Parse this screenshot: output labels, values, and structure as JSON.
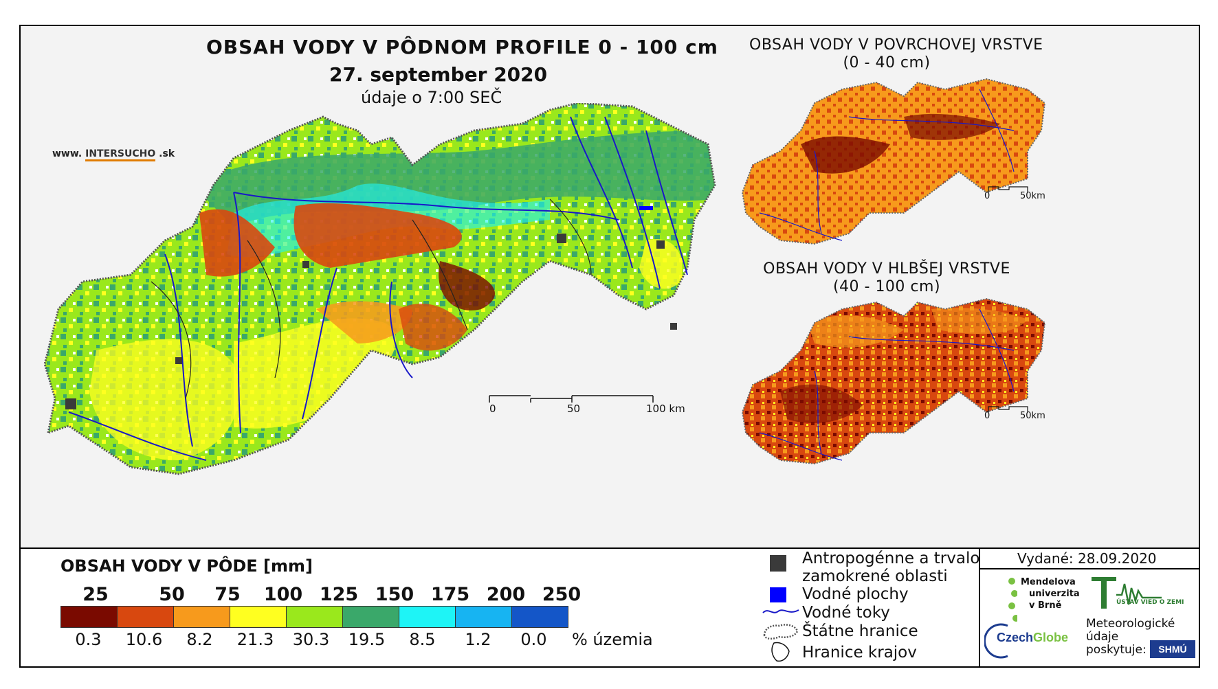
{
  "main": {
    "title": "OBSAH VODY V PÔDNOM PROFILE 0 - 100 cm",
    "date": "27. september 2020",
    "time_note": "údaje o 7:00 SEČ",
    "website_prefix": "www.",
    "website_highlight": "INTERSUCHO",
    "website_suffix": ".sk",
    "scale": {
      "zero": "0",
      "mid": "50",
      "end": "100 km"
    }
  },
  "surface_map": {
    "title": "OBSAH VODY V POVRCHOVEJ VRSTVE",
    "subtitle": "(0 - 40 cm)",
    "scale": {
      "zero": "0",
      "end": "50km"
    }
  },
  "deep_map": {
    "title": "OBSAH VODY V HLBŠEJ VRSTVE",
    "subtitle": "(40 - 100 cm)",
    "scale": {
      "zero": "0",
      "end": "50km"
    }
  },
  "legend": {
    "title": "OBSAH VODY V PÔDE [mm]",
    "thresholds": [
      "25",
      "50",
      "75",
      "100",
      "125",
      "150",
      "175",
      "200",
      "250"
    ],
    "colors": [
      "#7a0a00",
      "#d8480f",
      "#f79a1c",
      "#ffff20",
      "#9ae81c",
      "#3aa86a",
      "#1ef4f6",
      "#17b4f2",
      "#1456c8"
    ],
    "percentages": [
      "0.3",
      "10.6",
      "8.2",
      "21.3",
      "30.3",
      "19.5",
      "8.5",
      "1.2",
      "0.0"
    ],
    "pct_label": "% územia"
  },
  "symbols": {
    "urban_line1": "Antropogénne a trvalo",
    "urban_line2": "zamokrené oblasti",
    "water_bodies": "Vodné plochy",
    "rivers": "Vodné toky",
    "state_border": "Štátne hranice",
    "region_border": "Hranice krajov"
  },
  "issued": "Vydané: 28.09.2020",
  "logos": {
    "mendel_1": "Mendelova",
    "mendel_2": "univerzita",
    "mendel_3": "v Brně",
    "ustav": "ÚSTAV VIED O ZEMI",
    "czechglobe_a": "Czech",
    "czechglobe_b": "Globe",
    "meteo_1": "Meteorologické",
    "meteo_2": "údaje",
    "meteo_3": "poskytuje:",
    "shmu": "SHMÚ"
  }
}
